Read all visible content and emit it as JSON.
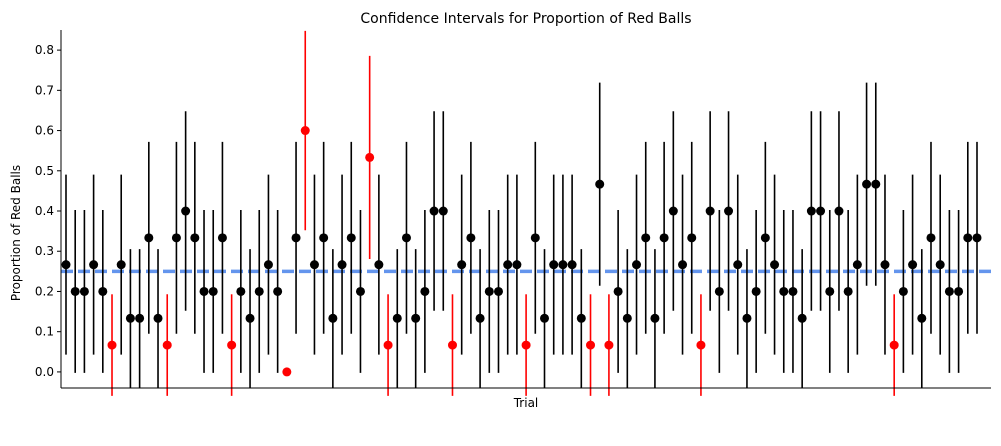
{
  "chart_data": {
    "type": "scatter",
    "title": "Confidence Intervals for Proportion of Red Balls",
    "xlabel": "Trial",
    "ylabel": "Proportion of Red Balls",
    "ylim": [
      -0.04,
      0.85
    ],
    "yticks": [
      0.0,
      0.1,
      0.2,
      0.3,
      0.4,
      0.5,
      0.6,
      0.7,
      0.8
    ],
    "reference_line": {
      "value": 0.25,
      "color": "#6495ed",
      "style": "dashed"
    },
    "colors": {
      "covers": "#000000",
      "misses": "#ff0000"
    },
    "grid": false,
    "n_trials": 100,
    "sample_size": 15,
    "interval_half_width_factor": 1.96,
    "y": [
      0.2667,
      0.2,
      0.2,
      0.2667,
      0.2,
      0.0667,
      0.2667,
      0.1333,
      0.1333,
      0.3333,
      0.1333,
      0.0667,
      0.3333,
      0.4,
      0.3333,
      0.2,
      0.2,
      0.3333,
      0.0667,
      0.2,
      0.1333,
      0.2,
      0.2667,
      0.2,
      0.0,
      0.3333,
      0.6,
      0.2667,
      0.3333,
      0.1333,
      0.2667,
      0.3333,
      0.2,
      0.5333,
      0.2667,
      0.0667,
      0.1333,
      0.3333,
      0.1333,
      0.2,
      0.4,
      0.4,
      0.0667,
      0.2667,
      0.3333,
      0.1333,
      0.2,
      0.2,
      0.2667,
      0.2667,
      0.0667,
      0.3333,
      0.1333,
      0.2667,
      0.2667,
      0.2667,
      0.1333,
      0.0667,
      0.4667,
      0.0667,
      0.2,
      0.1333,
      0.2667,
      0.3333,
      0.1333,
      0.3333,
      0.4,
      0.2667,
      0.3333,
      0.0667,
      0.4,
      0.2,
      0.4,
      0.2667,
      0.1333,
      0.2,
      0.3333,
      0.2667,
      0.2,
      0.2,
      0.1333,
      0.4,
      0.4,
      0.2,
      0.4,
      0.2,
      0.2667,
      0.4667,
      0.4667,
      0.2667,
      0.0667,
      0.2,
      0.2667,
      0.1333,
      0.3333,
      0.2667,
      0.2,
      0.2,
      0.3333,
      0.3333
    ]
  }
}
